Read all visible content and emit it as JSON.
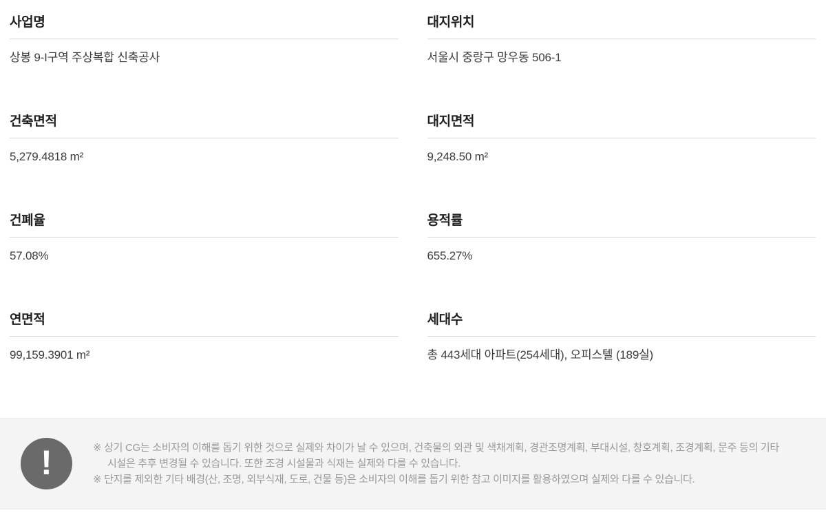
{
  "fields": [
    {
      "label": "사업명",
      "value": "상봉 9-I구역 주상복합 신축공사"
    },
    {
      "label": "대지위치",
      "value": "서울시 중랑구 망우동 506-1"
    },
    {
      "label": "건축면적",
      "value": "5,279.4818 m²"
    },
    {
      "label": "대지면적",
      "value": "9,248.50 m²"
    },
    {
      "label": "건폐율",
      "value": "57.08%"
    },
    {
      "label": "용적률",
      "value": "655.27%"
    },
    {
      "label": "연면적",
      "value": "99,159.3901 m²"
    },
    {
      "label": "세대수",
      "value": "총 443세대 아파트(254세대), 오피스텔 (189실)"
    }
  ],
  "notice": {
    "icon": "!",
    "items": [
      "※ 상기 CG는 소비자의 이해를 돕기 위한 것으로 실제와 차이가 날 수 있으며, 건축물의 외관 및 색채계획, 경관조명계획, 부대시설, 창호계획, 조경계획, 문주 등의 기타시설은 추후 변경될 수 있습니다. 또한 조경 시설물과 식재는 실제와 다를 수 있습니다.",
      "※ 단지를 제외한 기타 배경(산, 조명, 외부식재, 도로, 건물 등)은 소비자의 이해를 돕기 위한 참고 이미지를 활용하였으며 실제와 다를 수 있습니다."
    ]
  },
  "colors": {
    "label_text": "#1f1f1f",
    "value_text": "#3d3d3d",
    "divider": "#d8d8d8",
    "notice_background": "#f4f4f4",
    "notice_text": "#999999",
    "notice_icon_background": "#6a6a6a"
  }
}
